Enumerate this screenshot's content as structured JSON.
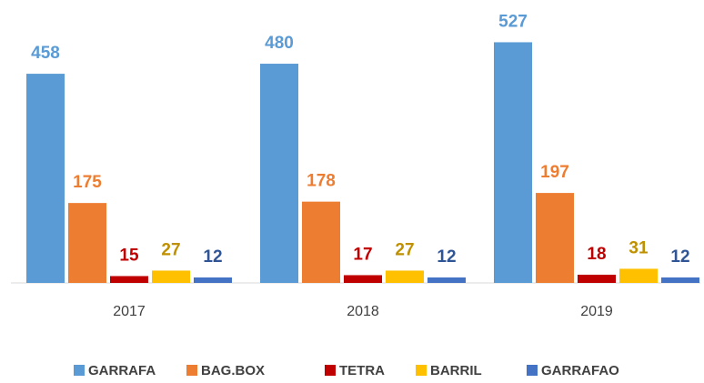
{
  "chart_data": {
    "type": "bar",
    "categories": [
      "2017",
      "2018",
      "2019"
    ],
    "series": [
      {
        "name": "GARRAFA",
        "color": "#5b9bd5",
        "label_color": "#5b9bd5",
        "values": [
          458,
          480,
          527
        ]
      },
      {
        "name": "BAG.BOX",
        "color": "#ed7d31",
        "label_color": "#ed7d31",
        "values": [
          175,
          178,
          197
        ]
      },
      {
        "name": "TETRA",
        "color": "#c00000",
        "label_color": "#c00000",
        "values": [
          15,
          17,
          18
        ]
      },
      {
        "name": "BARRIL",
        "color": "#ffc000",
        "label_color": "#bf9000",
        "values": [
          27,
          27,
          31
        ]
      },
      {
        "name": "GARRAFAO",
        "color": "#4472c4",
        "label_color": "#2f5597",
        "values": [
          12,
          12,
          12
        ]
      }
    ],
    "legend": "bottom"
  }
}
